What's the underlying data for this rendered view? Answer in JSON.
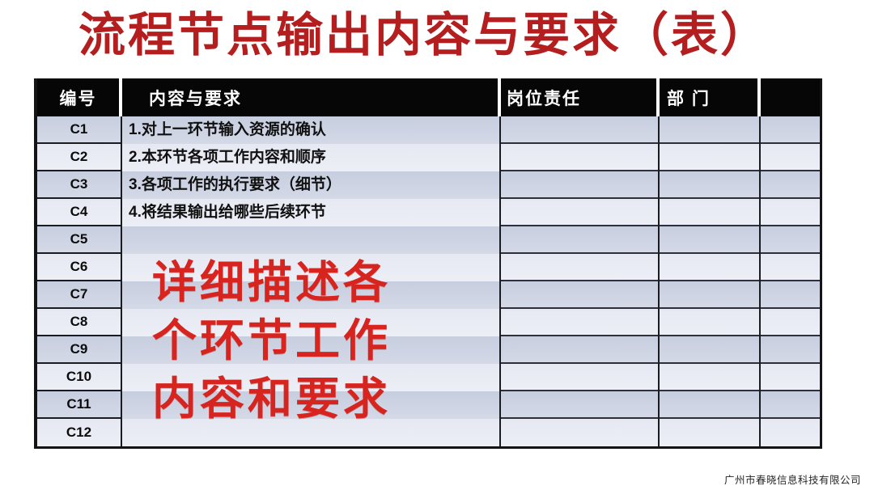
{
  "title": "流程节点输出内容与要求（表）",
  "table": {
    "headers": [
      "编号",
      "内容与要求",
      "岗位责任",
      "部 门",
      ""
    ],
    "rows": [
      {
        "id": "C1",
        "content": "1.对上一环节输入资源的确认"
      },
      {
        "id": "C2",
        "content": "2.本环节各项工作内容和顺序"
      },
      {
        "id": "C3",
        "content": "3.各项工作的执行要求（细节）"
      },
      {
        "id": "C4",
        "content": "4.将结果输出给哪些后续环节"
      },
      {
        "id": "C5",
        "content": ""
      },
      {
        "id": "C6",
        "content": ""
      },
      {
        "id": "C7",
        "content": ""
      },
      {
        "id": "C8",
        "content": ""
      },
      {
        "id": "C9",
        "content": ""
      },
      {
        "id": "C10",
        "content": ""
      },
      {
        "id": "C11",
        "content": ""
      },
      {
        "id": "C12",
        "content": ""
      }
    ]
  },
  "overlay": {
    "lines": [
      "详细描述各",
      "个环节工作",
      "内容和要求"
    ]
  },
  "footer": "广州市春晓信息科技有限公司",
  "colors": {
    "title_red": "#b41e1e",
    "overlay_red": "#d8241e",
    "header_bg": "#060606",
    "row_dark": "#ccd2e1",
    "row_light": "#e9ebf4",
    "border": "#1b1c22"
  }
}
